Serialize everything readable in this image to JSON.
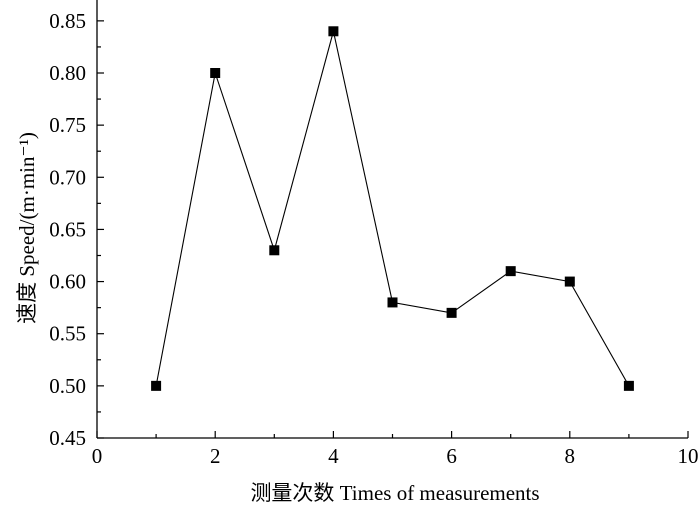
{
  "chart_data": {
    "type": "line",
    "title": "",
    "xlabel": "测量次数 Times of measurements",
    "ylabel": "速度 Speed/(m·min⁻¹)",
    "xlim": [
      0,
      10
    ],
    "ylim": [
      0.45,
      0.87
    ],
    "x_ticks": [
      0,
      2,
      4,
      6,
      8,
      10
    ],
    "x_tick_labels": [
      "0",
      "2",
      "4",
      "6",
      "8",
      "10"
    ],
    "y_ticks": [
      0.45,
      0.5,
      0.55,
      0.6,
      0.65,
      0.7,
      0.75,
      0.8,
      0.85
    ],
    "y_tick_labels": [
      "0.45",
      "0.50",
      "0.55",
      "0.60",
      "0.65",
      "0.70",
      "0.75",
      "0.80",
      "0.85"
    ],
    "grid": false,
    "legend": "none",
    "series": [
      {
        "x": [
          1,
          2,
          3,
          4,
          5,
          6,
          7,
          8,
          9
        ],
        "values": [
          0.5,
          0.8,
          0.63,
          0.84,
          0.58,
          0.57,
          0.61,
          0.6,
          0.5
        ],
        "marker": "square",
        "color": "#000000"
      }
    ]
  }
}
